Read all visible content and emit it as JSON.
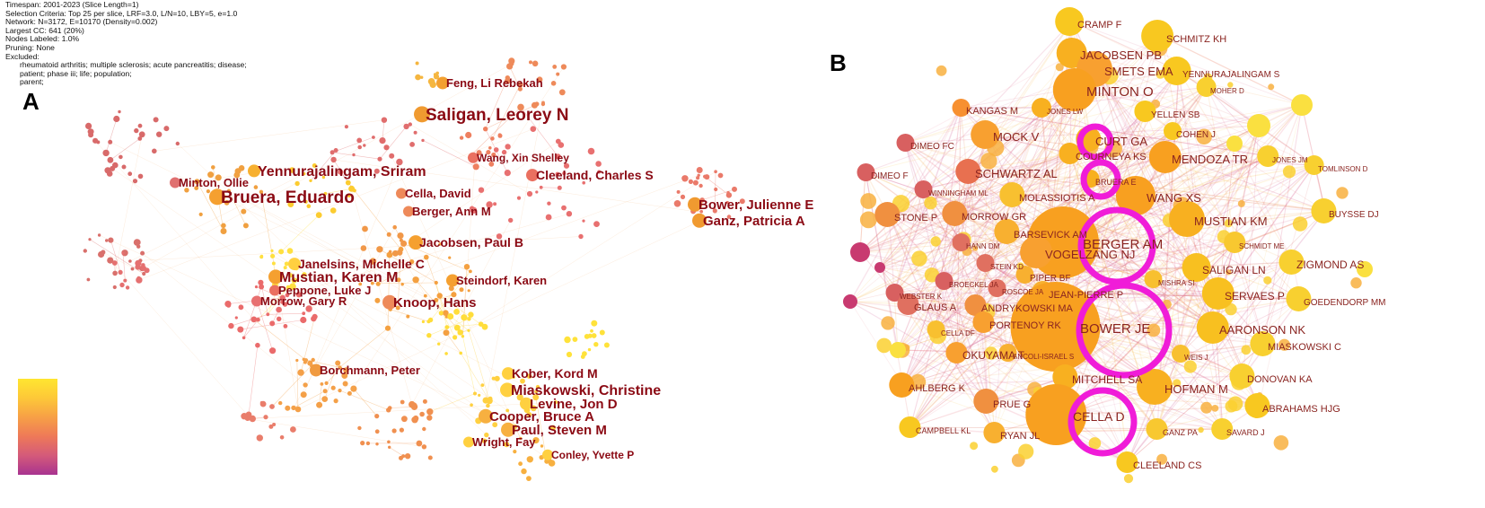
{
  "meta": {
    "lines": [
      "Timespan: 2001-2023 (Slice Length=1)",
      "Selection Criteria: Top 25 per slice, LRF=3.0, L/N=10, LBY=5, e=1.0",
      "Network: N=3172, E=10170 (Density=0.002)",
      "Largest CC: 641 (20%)",
      "Nodes Labeled: 1.0%",
      "Pruning: None",
      "Excluded:"
    ],
    "excluded": [
      "rheumatoid arthritis; multiple sclerosis; acute pancreatitis; disease;",
      "patient; phase iii; life; population;",
      "parent;"
    ]
  },
  "panel_a": {
    "letter": "A",
    "labels": [
      "Feng, Li Rebekah",
      "Saligan, Leorey N",
      "Yennurajalingam, Sriram",
      "Minton, Ollie",
      "Bruera, Eduardo",
      "Wang, Xin Shelley",
      "Cleeland, Charles S",
      "Cella, David",
      "Berger, Ann M",
      "Bower, Julienne E",
      "Ganz, Patricia A",
      "Jacobsen, Paul B",
      "Janelsins, Michelle C",
      "Mustian, Karen M",
      "Peppone, Luke J",
      "Steindorf, Karen",
      "Morrow, Gary R",
      "Knoop, Hans",
      "Borchmann, Peter",
      "Kober, Kord M",
      "Miaskowski, Christine",
      "Levine, Jon D",
      "Cooper, Bruce A",
      "Paul, Steven M",
      "Wright, Fay",
      "Conley, Yvette P"
    ]
  },
  "panel_b": {
    "letter": "B",
    "labels": [
      "CRAMP F",
      "SCHMITZ KH",
      "JACOBSEN PB",
      "SMETS EMA",
      "YENNURAJALINGAM S",
      "MINTON O",
      "MOHER D",
      "KANGAS M",
      "JONES LW",
      "YELLEN SB",
      "CURT GA",
      "COHEN J",
      "MOCK V",
      "DIMEO FC",
      "COURNEYA KS",
      "MENDOZA TR",
      "JONES JM",
      "TOMLINSON D",
      "DIMEO F",
      "SCHWARTZ AL",
      "BRUERA E",
      "WANG XS",
      "WINNINGHAM ML",
      "MOLASSIOTIS A",
      "BUYSSE DJ",
      "STONE P",
      "MORROW GR",
      "BARSEVICK AM",
      "MUSTIAN KM",
      "BERGER AM",
      "SCHMIDT ME",
      "HANN DM",
      "VOGELZANG NJ",
      "ZIGMOND AS",
      "STEIN KD",
      "SALIGAN LN",
      "PIPER BF",
      "BROECKEL JA",
      "ROSCOE JA",
      "MISHRA SI",
      "WEBSTER K",
      "JEAN-PIERRE P",
      "SERVAES P",
      "GOEDENDORP MM",
      "GLAUS A",
      "ANDRYKOWSKI MA",
      "PORTENOY RK",
      "CELLA DF",
      "BOWER JE",
      "AARONSON NK",
      "MIASKOWSKI C",
      "OKUYAMA T",
      "ANCOLI-ISRAEL S",
      "WEIS J",
      "MITCHELL SA",
      "DONOVAN KA",
      "AHLBERG K",
      "HOFMAN M",
      "PRUE G",
      "ABRAHAMS HJG",
      "CELLA D",
      "CAMPBELL KL",
      "GANZ PA",
      "SAVARD J",
      "RYAN JL",
      "CLEELAND CS"
    ]
  },
  "legend": {
    "colors": [
      "#ffe630",
      "#f7a046",
      "#ee7958",
      "#d45a7a",
      "#a8338f"
    ]
  }
}
